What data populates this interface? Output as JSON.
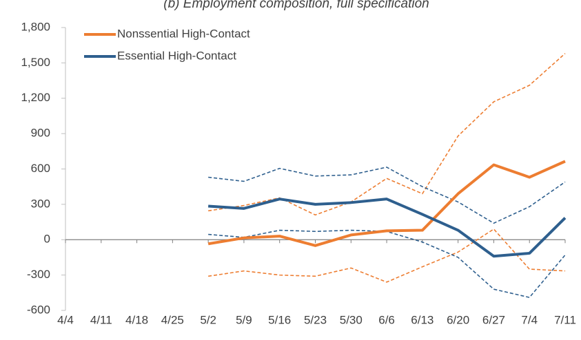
{
  "chart_data": {
    "type": "line",
    "title": "(b) Employment composition, full specification",
    "categories": [
      "4/4",
      "4/11",
      "4/18",
      "4/25",
      "5/2",
      "5/9",
      "5/16",
      "5/23",
      "5/30",
      "6/6",
      "6/13",
      "6/20",
      "6/27",
      "7/4",
      "7/11"
    ],
    "series": [
      {
        "name": "Nonssential High-Contact",
        "color": "#ed7d31",
        "dashed": false,
        "values": [
          null,
          null,
          null,
          null,
          -35,
          15,
          30,
          -50,
          40,
          75,
          80,
          390,
          635,
          530,
          665
        ]
      },
      {
        "name": "Essential High-Contact",
        "color": "#2e5f8e",
        "dashed": false,
        "values": [
          null,
          null,
          null,
          null,
          285,
          265,
          345,
          300,
          315,
          345,
          215,
          80,
          -140,
          -115,
          185
        ]
      },
      {
        "color": "#ed7d31",
        "dashed": true,
        "values": [
          null,
          null,
          null,
          null,
          245,
          290,
          355,
          210,
          320,
          520,
          390,
          880,
          1170,
          1310,
          1580
        ]
      },
      {
        "color": "#ed7d31",
        "dashed": true,
        "values": [
          null,
          null,
          null,
          null,
          -310,
          -265,
          -300,
          -310,
          -240,
          -360,
          -230,
          -105,
          90,
          -250,
          -265
        ]
      },
      {
        "color": "#2e5f8e",
        "dashed": true,
        "values": [
          null,
          null,
          null,
          null,
          530,
          495,
          605,
          540,
          550,
          615,
          450,
          320,
          140,
          280,
          490
        ]
      },
      {
        "color": "#2e5f8e",
        "dashed": true,
        "values": [
          null,
          null,
          null,
          null,
          45,
          20,
          80,
          70,
          80,
          70,
          -20,
          -150,
          -420,
          -490,
          -130
        ]
      }
    ],
    "ylim": [
      -600,
      1800
    ],
    "yticks": [
      -600,
      -300,
      0,
      300,
      600,
      900,
      {
        "value": 1200,
        "label": "1,200"
      },
      {
        "value": 1500,
        "label": "1,500"
      },
      {
        "value": 1800,
        "label": "1,800"
      }
    ],
    "grid": false,
    "legend": "upper-left"
  }
}
